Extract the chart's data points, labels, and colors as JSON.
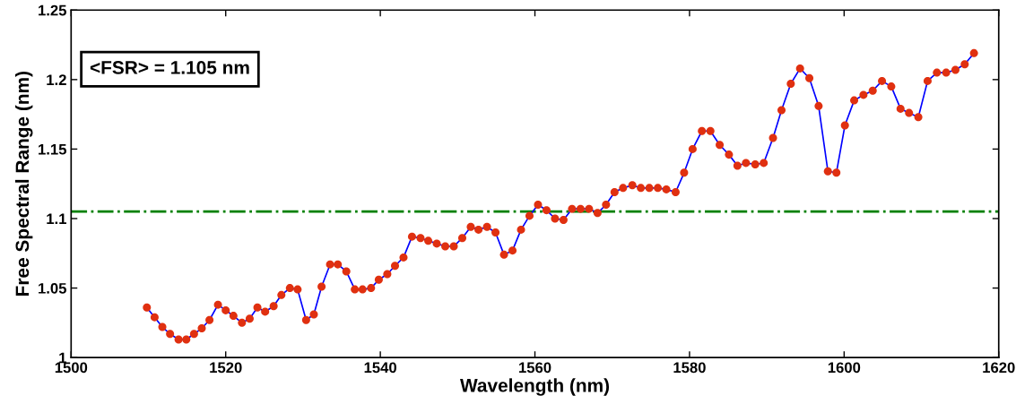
{
  "chart_data": {
    "type": "line",
    "xlabel": "Wavelength (nm)",
    "ylabel": "Free Spectral Range (nm)",
    "xlim": [
      1500,
      1620
    ],
    "xticks": [
      1500,
      1520,
      1540,
      1560,
      1580,
      1600,
      1620
    ],
    "ylim": [
      1,
      1.25
    ],
    "yticks": [
      1,
      1.05,
      {
        "value": 1.1,
        "label": "1.1"
      },
      1.15,
      {
        "value": 1.2,
        "label": "1.2"
      },
      1.25
    ],
    "grid": false,
    "marker": "circle",
    "line_style": "solid",
    "annotations": [
      "<FSR> = 1.105 nm"
    ],
    "ref_lines": [
      {
        "axis": "y",
        "value": 1.105,
        "color": "#008000",
        "line_style": "dashdot"
      }
    ],
    "series": [
      {
        "color": "#0000ff",
        "colors": [
          "#e03010",
          "#e03010",
          "#e03010",
          "#e03010",
          "#e03010",
          "#e03010",
          "#e03010",
          "#e03010",
          "#e03010",
          "#e03010",
          "#e03010",
          "#e03010",
          "#e03010",
          "#e03010",
          "#e03010",
          "#e03010",
          "#e03010",
          "#e03010",
          "#e03010",
          "#e03010",
          "#e03010",
          "#e03010",
          "#e03010",
          "#e03010",
          "#e03010",
          "#e03010",
          "#e03010",
          "#e03010",
          "#e03010",
          "#e03010",
          "#e03010",
          "#e03010",
          "#e03010",
          "#e03010",
          "#e03010",
          "#e03010",
          "#e03010",
          "#e03010",
          "#e03010",
          "#e03010",
          "#e03010",
          "#e03010",
          "#e03010",
          "#e03010",
          "#e03010",
          "#e03010",
          "#e03010",
          "#e03010",
          "#e03010",
          "#e03010",
          "#e03010",
          "#e03010",
          "#e03010",
          "#e03010",
          "#e03010",
          "#e03010",
          "#e03010",
          "#e03010",
          "#e03010",
          "#e03010",
          "#e03010",
          "#e03010",
          "#e03010",
          "#e03010",
          "#e03010",
          "#e03010",
          "#e03010",
          "#e03010",
          "#e03010",
          "#e03010",
          "#e03010",
          "#e03010",
          "#e03010",
          "#e03010",
          "#e03010",
          "#e03010",
          "#e03010",
          "#e03010",
          "#e03010",
          "#e03010",
          "#e03010",
          "#e03010",
          "#e03010",
          "#e03010",
          "#e03010",
          "#e03010",
          "#e03010",
          "#e03010",
          "#e03010",
          "#e03010",
          "#e03010",
          "#e03010",
          "#e03010",
          "#e03010",
          "#e03010",
          "#e03010",
          "#e03010",
          "#e03010"
        ],
        "x": [
          1509.8,
          1510.8,
          1511.8,
          1512.8,
          1513.9,
          1514.9,
          1515.9,
          1516.9,
          1517.9,
          1519.0,
          1520.0,
          1521.0,
          1522.1,
          1523.1,
          1524.1,
          1525.1,
          1526.2,
          1527.2,
          1528.3,
          1529.3,
          1530.4,
          1531.4,
          1532.4,
          1533.5,
          1534.5,
          1535.6,
          1536.7,
          1537.7,
          1538.8,
          1539.8,
          1540.9,
          1541.9,
          1543.0,
          1544.1,
          1545.2,
          1546.2,
          1547.3,
          1548.4,
          1549.5,
          1550.6,
          1551.7,
          1552.7,
          1553.8,
          1554.9,
          1556.0,
          1557.1,
          1558.2,
          1559.3,
          1560.4,
          1561.5,
          1562.6,
          1563.7,
          1564.8,
          1565.9,
          1567.0,
          1568.1,
          1569.2,
          1570.3,
          1571.4,
          1572.6,
          1573.7,
          1574.8,
          1575.9,
          1577.0,
          1578.2,
          1579.3,
          1580.4,
          1581.6,
          1582.7,
          1583.9,
          1585.1,
          1586.2,
          1587.3,
          1588.5,
          1589.6,
          1590.8,
          1591.9,
          1593.1,
          1594.3,
          1595.5,
          1596.7,
          1597.9,
          1599.0,
          1600.1,
          1601.3,
          1602.5,
          1603.7,
          1604.9,
          1606.1,
          1607.3,
          1608.4,
          1609.6,
          1610.8,
          1612.0,
          1613.2,
          1614.4,
          1615.6,
          1616.8
        ],
        "values": [
          1.036,
          1.029,
          1.022,
          1.017,
          1.013,
          1.013,
          1.017,
          1.021,
          1.027,
          1.038,
          1.034,
          1.03,
          1.025,
          1.028,
          1.036,
          1.033,
          1.037,
          1.045,
          1.05,
          1.049,
          1.027,
          1.031,
          1.051,
          1.067,
          1.067,
          1.062,
          1.049,
          1.049,
          1.05,
          1.056,
          1.06,
          1.066,
          1.072,
          1.087,
          1.086,
          1.084,
          1.082,
          1.08,
          1.08,
          1.086,
          1.094,
          1.092,
          1.094,
          1.09,
          1.074,
          1.077,
          1.092,
          1.102,
          1.11,
          1.106,
          1.1,
          1.099,
          1.107,
          1.107,
          1.107,
          1.104,
          1.11,
          1.119,
          1.122,
          1.124,
          1.122,
          1.122,
          1.122,
          1.121,
          1.119,
          1.133,
          1.15,
          1.163,
          1.163,
          1.153,
          1.146,
          1.138,
          1.14,
          1.139,
          1.14,
          1.158,
          1.178,
          1.197,
          1.208,
          1.201,
          1.181,
          1.134,
          1.133,
          1.167,
          1.185,
          1.189,
          1.192,
          1.199,
          1.195,
          1.179,
          1.176,
          1.173,
          1.199,
          1.205,
          1.205,
          1.207,
          1.211,
          1.219
        ]
      }
    ]
  }
}
